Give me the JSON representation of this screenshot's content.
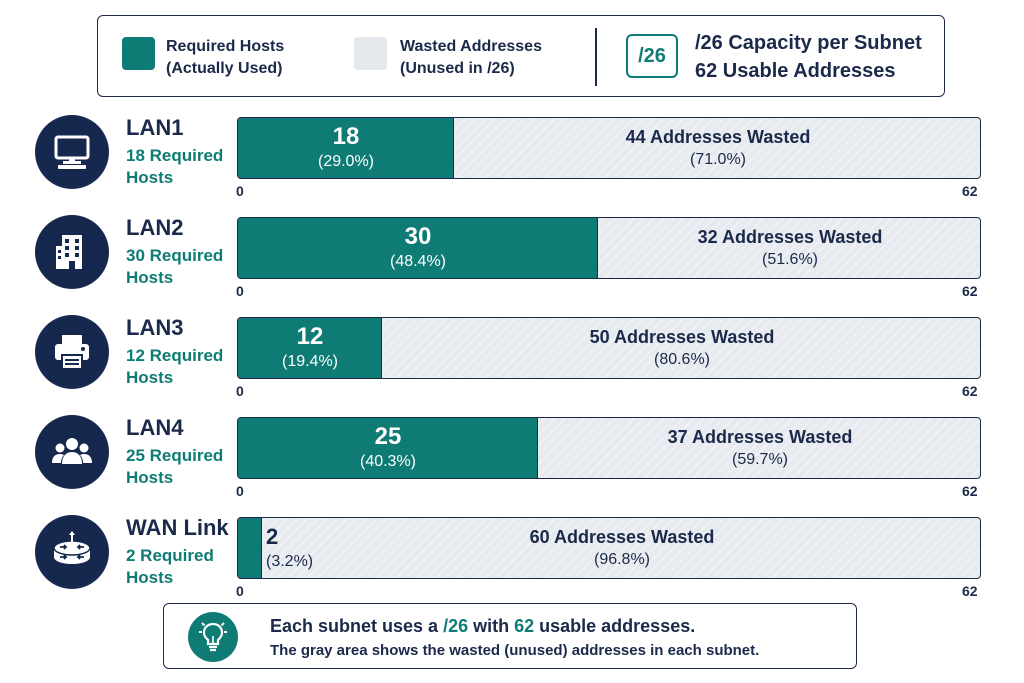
{
  "legend": {
    "used_line1": "Required Hosts",
    "used_line2": "(Actually Used)",
    "wasted_line1": "Wasted Addresses",
    "wasted_line2": "(Unused in /26)",
    "badge": "/26",
    "capacity_title": "/26 Capacity per Subnet",
    "capacity_sub": "62 Usable Addresses"
  },
  "colors": {
    "used": "#0e7c74",
    "wasted": "#e4e7ec",
    "navy": "#16284e"
  },
  "axis": {
    "min_label": "0",
    "max_label": "62"
  },
  "note": {
    "pre": "Each subnet uses a ",
    "cidr": "/26",
    "mid": " with ",
    "count": "62",
    "post": " usable addresses.",
    "line2": "The gray area shows the wasted (unused) addresses in each subnet."
  },
  "chart_data": {
    "type": "bar",
    "orientation": "horizontal-stacked",
    "xlim": [
      0,
      62
    ],
    "categories": [
      "LAN1",
      "LAN2",
      "LAN3",
      "LAN4",
      "WAN Link"
    ],
    "series": [
      {
        "name": "Required Hosts (Actually Used)",
        "values": [
          18,
          30,
          12,
          25,
          2
        ]
      },
      {
        "name": "Wasted Addresses (Unused in /26)",
        "values": [
          44,
          32,
          50,
          37,
          60
        ]
      }
    ],
    "rows": [
      {
        "name": "LAN1",
        "icon": "monitor-icon",
        "required_label": "18 Required Hosts",
        "used": 18,
        "used_pct": "(29.0%)",
        "wasted_label": "44 Addresses Wasted",
        "wasted_pct": "(71.0%)"
      },
      {
        "name": "LAN2",
        "icon": "building-icon",
        "required_label": "30 Required Hosts",
        "used": 30,
        "used_pct": "(48.4%)",
        "wasted_label": "32 Addresses Wasted",
        "wasted_pct": "(51.6%)"
      },
      {
        "name": "LAN3",
        "icon": "printer-icon",
        "required_label": "12 Required Hosts",
        "used": 12,
        "used_pct": "(19.4%)",
        "wasted_label": "50 Addresses Wasted",
        "wasted_pct": "(80.6%)"
      },
      {
        "name": "LAN4",
        "icon": "users-icon",
        "required_label": "25 Required Hosts",
        "used": 25,
        "used_pct": "(40.3%)",
        "wasted_label": "37 Addresses Wasted",
        "wasted_pct": "(59.7%)"
      },
      {
        "name": "WAN Link",
        "icon": "router-icon",
        "required_label": "2 Required Hosts",
        "used": 2,
        "used_pct": "(3.2%)",
        "wasted_label": "60 Addresses Wasted",
        "wasted_pct": "(96.8%)"
      }
    ]
  }
}
